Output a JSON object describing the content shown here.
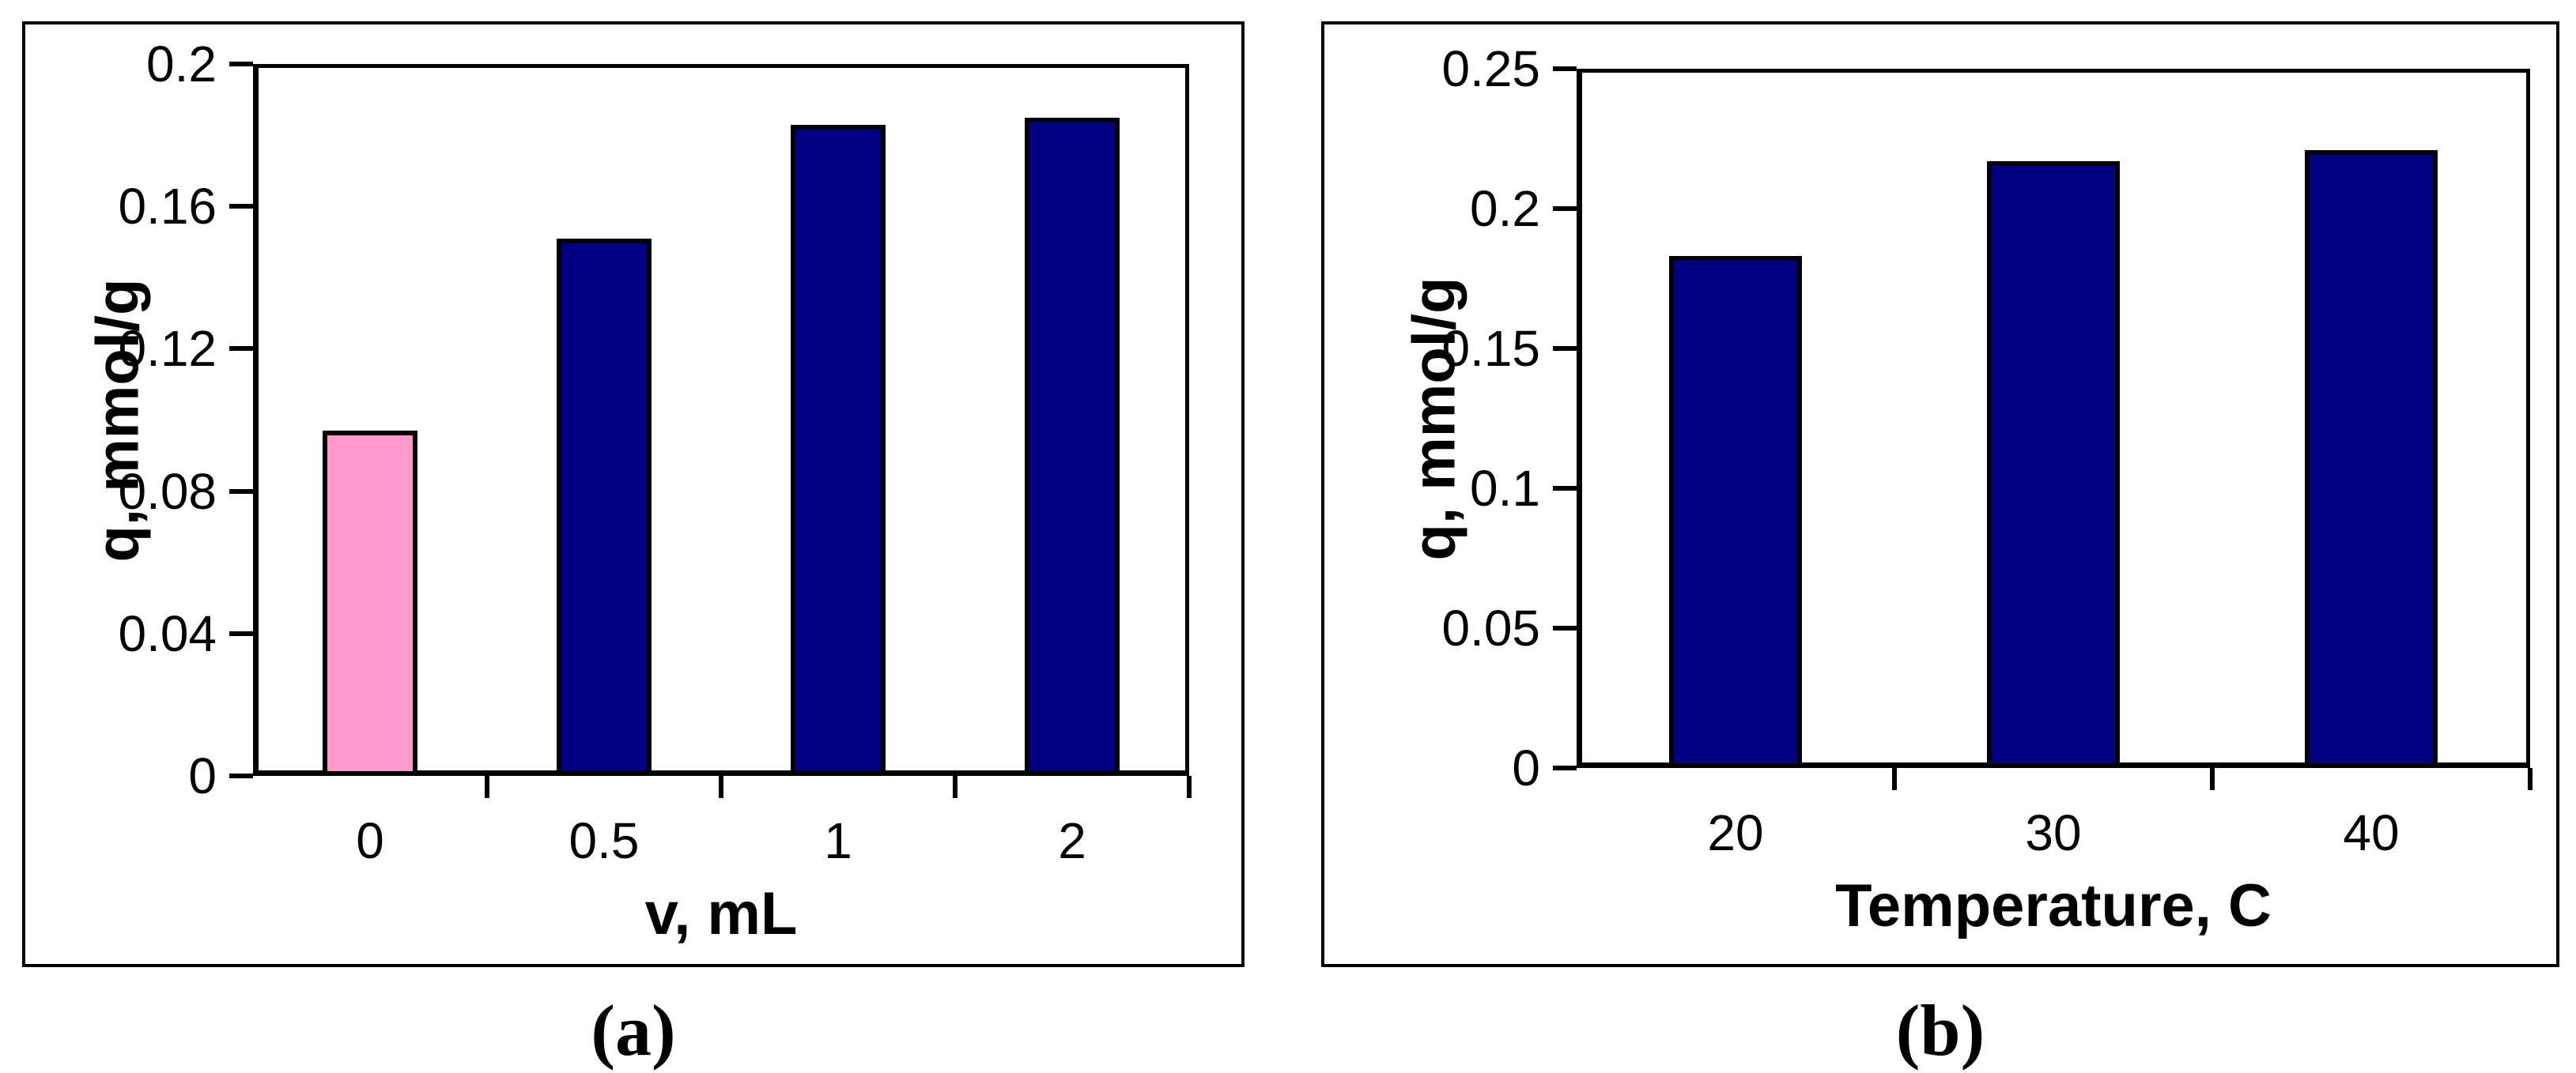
{
  "figure": {
    "background_color": "#FFFFFF",
    "panels": [
      {
        "caption": "(a)"
      },
      {
        "caption": "(b)"
      }
    ]
  },
  "chart_data": [
    {
      "type": "bar",
      "panel": "a",
      "title": "",
      "ylabel": "q, mmol/g",
      "xlabel": "v, mL",
      "categories": [
        "0",
        "0.5",
        "1",
        "2"
      ],
      "values": [
        0.097,
        0.151,
        0.183,
        0.185
      ],
      "bar_colors": [
        "#FF99CC",
        "#000080",
        "#000080",
        "#000080"
      ],
      "bar_border_color": "#000000",
      "ylim": [
        0,
        0.2
      ],
      "yticks": [
        0,
        0.04,
        0.08,
        0.12,
        0.16,
        0.2
      ],
      "ytick_labels": [
        "0",
        "0.04",
        "0.08",
        "0.12",
        "0.16",
        "0.2"
      ],
      "grid": false,
      "legend": "none",
      "axis_color": "#000000"
    },
    {
      "type": "bar",
      "panel": "b",
      "title": "",
      "ylabel": "q, mmol/g",
      "xlabel": "Temperature, C",
      "categories": [
        "20",
        "30",
        "40"
      ],
      "values": [
        0.183,
        0.217,
        0.221
      ],
      "bar_colors": [
        "#000080",
        "#000080",
        "#000080"
      ],
      "bar_border_color": "#000000",
      "ylim": [
        0,
        0.25
      ],
      "yticks": [
        0,
        0.05,
        0.1,
        0.15,
        0.2,
        0.25
      ],
      "ytick_labels": [
        "0",
        "0.05",
        "0.1",
        "0.15",
        "0.2",
        "0.25"
      ],
      "grid": false,
      "legend": "none",
      "axis_color": "#000000"
    }
  ]
}
